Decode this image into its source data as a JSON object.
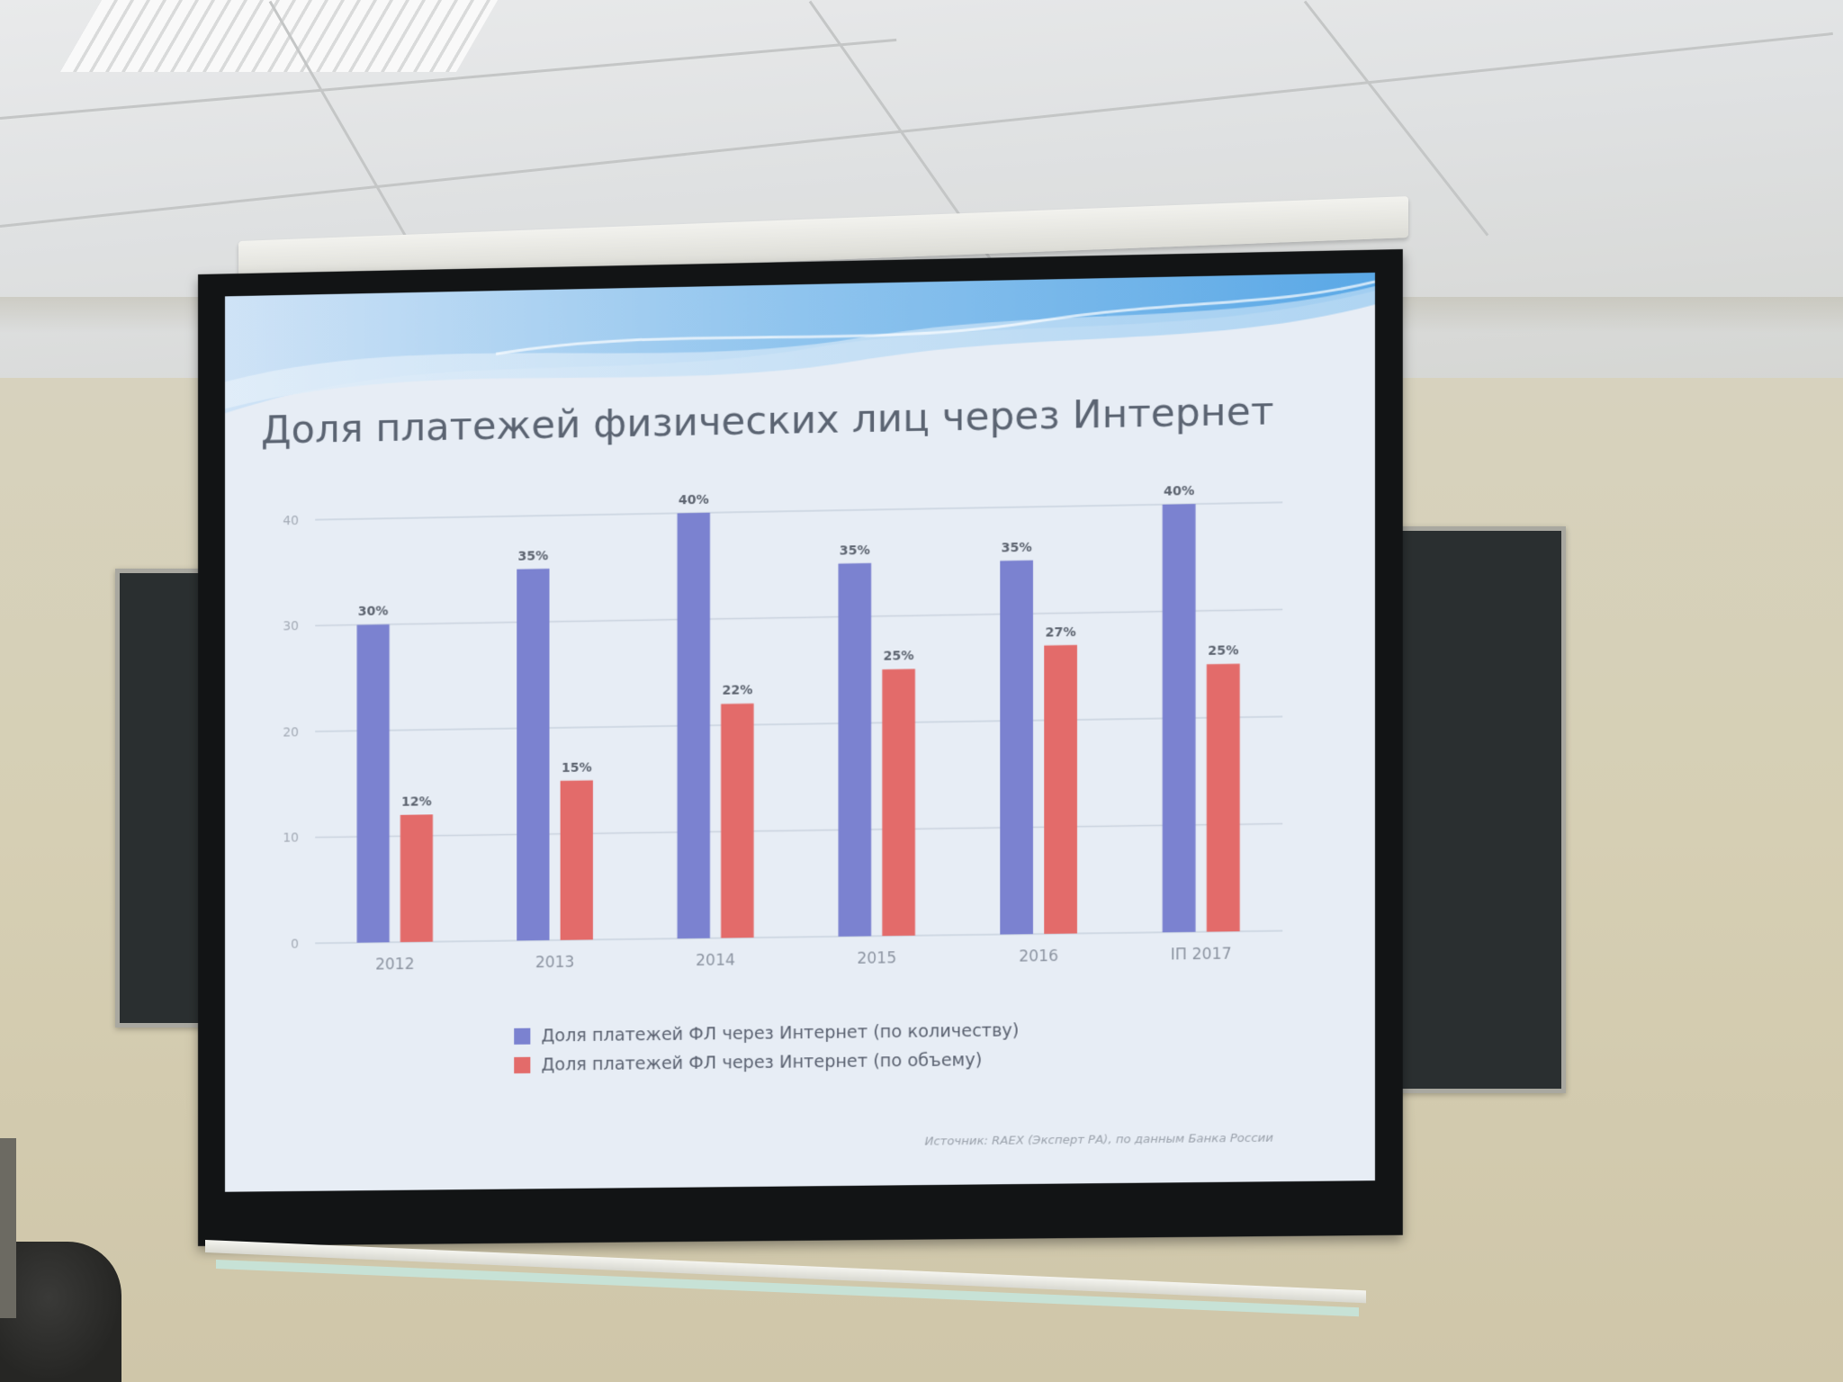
{
  "slide": {
    "title": "Доля платежей физических лиц через Интернет",
    "source": "Источник: RAEX (Эксперт РА), по данным Банка России"
  },
  "chart_data": {
    "type": "bar",
    "title": "Доля платежей физических лиц через Интернет",
    "categories": [
      "2012",
      "2013",
      "2014",
      "2015",
      "2016",
      "IП 2017"
    ],
    "series": [
      {
        "name": "Доля платежей ФЛ через Интернет (по количеству)",
        "color": "#7b82d0",
        "values": [
          30,
          35,
          40,
          35,
          35,
          40
        ],
        "labels": [
          "30%",
          "35%",
          "40%",
          "35%",
          "35%",
          "40%"
        ]
      },
      {
        "name": "Доля платежей ФЛ через Интернет (по объему)",
        "color": "#e36b6a",
        "values": [
          12,
          15,
          22,
          25,
          27,
          25
        ],
        "labels": [
          "12%",
          "15%",
          "22%",
          "25%",
          "27%",
          "25%"
        ]
      }
    ],
    "yticks": [
      "0",
      "10",
      "20",
      "30",
      "40"
    ],
    "ylim": [
      0,
      40
    ],
    "grid": true,
    "legend": "bottom",
    "xlabel": "",
    "ylabel": ""
  }
}
